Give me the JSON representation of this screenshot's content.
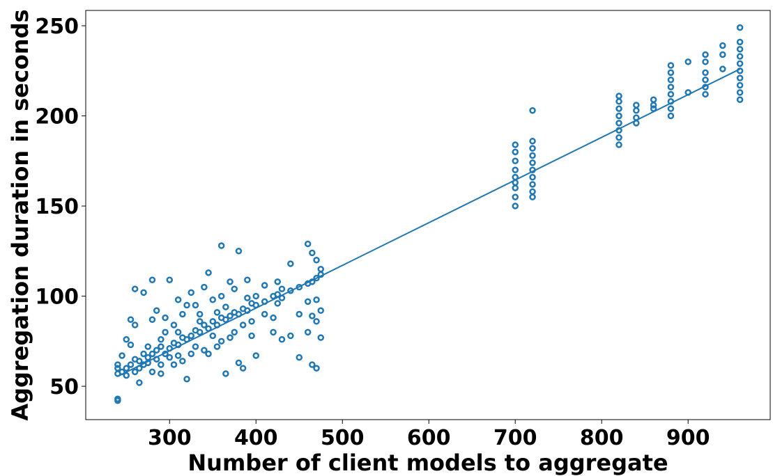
{
  "chart_data": {
    "type": "scatter",
    "xlabel": "Number of client models to aggregate",
    "ylabel": "Aggregation duration in seconds",
    "xlim": [
      203,
      995
    ],
    "ylim": [
      31.5,
      258.5
    ],
    "xticks": [
      300,
      400,
      500,
      600,
      700,
      800,
      900
    ],
    "yticks": [
      50,
      100,
      150,
      200,
      250
    ],
    "grid": false,
    "series": [
      {
        "type": "scatter",
        "color": "#1f77b4",
        "x": [
          240,
          240,
          240,
          240,
          240,
          245,
          245,
          250,
          250,
          250,
          255,
          255,
          255,
          260,
          260,
          260,
          260,
          265,
          265,
          265,
          270,
          270,
          270,
          275,
          275,
          275,
          280,
          280,
          280,
          280,
          285,
          285,
          285,
          290,
          290,
          290,
          290,
          295,
          295,
          295,
          300,
          300,
          300,
          305,
          305,
          305,
          310,
          310,
          310,
          310,
          315,
          315,
          315,
          320,
          320,
          320,
          325,
          325,
          325,
          330,
          330,
          330,
          335,
          335,
          335,
          340,
          340,
          340,
          345,
          345,
          345,
          350,
          350,
          350,
          355,
          355,
          355,
          360,
          360,
          360,
          360,
          365,
          365,
          365,
          370,
          370,
          370,
          375,
          375,
          375,
          380,
          380,
          380,
          385,
          385,
          385,
          390,
          390,
          390,
          395,
          395,
          395,
          400,
          400,
          400,
          410,
          410,
          410,
          420,
          420,
          420,
          425,
          425,
          425,
          430,
          430,
          430,
          440,
          440,
          440,
          450,
          450,
          450,
          460,
          460,
          460,
          460,
          465,
          465,
          465,
          465,
          470,
          470,
          470,
          470,
          470,
          475,
          475,
          475,
          475,
          700,
          700,
          700,
          700,
          700,
          700,
          700,
          700,
          700,
          720,
          720,
          720,
          720,
          720,
          720,
          720,
          720,
          720,
          720,
          820,
          820,
          820,
          820,
          820,
          820,
          820,
          820,
          840,
          840,
          840,
          840,
          860,
          860,
          860,
          880,
          880,
          880,
          880,
          880,
          880,
          880,
          880,
          900,
          900,
          920,
          920,
          920,
          920,
          920,
          920,
          940,
          940,
          940,
          960,
          960,
          960,
          960,
          960,
          960,
          960,
          960,
          960,
          960
        ],
        "values": [
          42,
          43,
          57,
          60,
          62,
          58,
          67,
          56,
          60,
          76,
          62,
          87,
          73,
          58,
          84,
          65,
          104,
          60,
          64,
          52,
          62,
          68,
          102,
          66,
          72,
          63,
          68,
          109,
          87,
          58,
          70,
          65,
          92,
          72,
          62,
          76,
          57,
          68,
          88,
          80,
          71,
          66,
          109,
          74,
          84,
          62,
          73,
          80,
          98,
          67,
          77,
          90,
          64,
          76,
          95,
          54,
          78,
          102,
          68,
          81,
          72,
          95,
          80,
          90,
          86,
          84,
          105,
          70,
          82,
          113,
          68,
          86,
          78,
          98,
          84,
          91,
          72,
          88,
          128,
          100,
          75,
          87,
          57,
          94,
          89,
          108,
          77,
          91,
          80,
          104,
          90,
          125,
          63,
          93,
          84,
          60,
          92,
          99,
          109,
          96,
          78,
          86,
          95,
          67,
          100,
          97,
          90,
          106,
          100,
          80,
          88,
          101,
          108,
          96,
          99,
          76,
          104,
          103,
          118,
          78,
          105,
          66,
          90,
          107,
          129,
          80,
          97,
          108,
          62,
          124,
          89,
          110,
          60,
          98,
          120,
          86,
          112,
          115,
          92,
          77,
          150,
          155,
          160,
          163,
          166,
          170,
          175,
          180,
          184,
          155,
          158,
          162,
          166,
          170,
          174,
          178,
          182,
          186,
          203,
          184,
          188,
          192,
          196,
          200,
          204,
          208,
          211,
          196,
          199,
          203,
          206,
          204,
          206,
          209,
          200,
          204,
          208,
          212,
          216,
          220,
          224,
          228,
          213,
          230,
          212,
          216,
          220,
          224,
          230,
          234,
          226,
          234,
          239,
          209,
          213,
          217,
          221,
          225,
          229,
          233,
          237,
          241,
          249
        ]
      },
      {
        "type": "line",
        "color": "#1f77b4",
        "x": [
          240,
          960
        ],
        "values": [
          55.5,
          226
        ]
      }
    ]
  }
}
